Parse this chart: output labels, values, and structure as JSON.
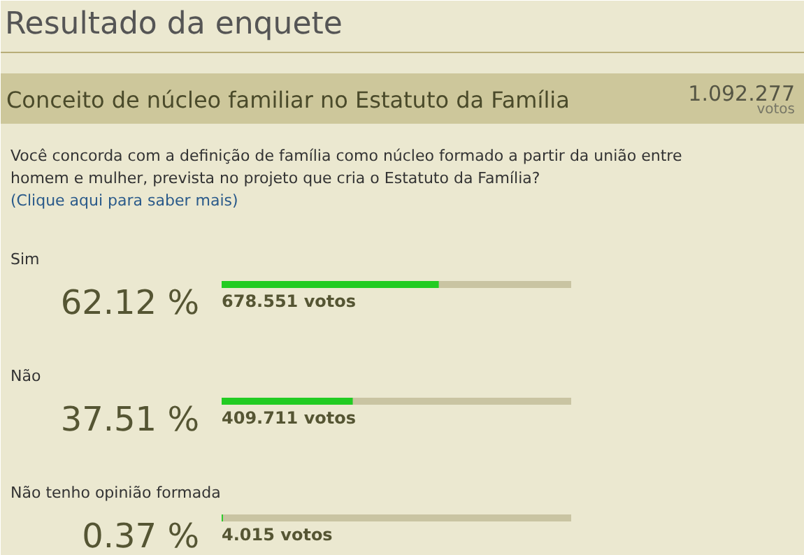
{
  "chart_data": {
    "type": "bar",
    "orientation": "horizontal",
    "title": "Resultado da enquete",
    "subtitle": "Conceito de núcleo familiar no Estatuto da Família",
    "categories": [
      "Sim",
      "Não",
      "Não tenho opinião formada"
    ],
    "values": [
      62.12,
      37.51,
      0.37
    ],
    "value_labels": [
      "62.12 %",
      "37.51 %",
      "0.37 %"
    ],
    "color": "#22cc22",
    "xlim": [
      0,
      100
    ],
    "annotations": [
      {
        "text": "1.092.277"
      },
      {
        "text": "votos"
      },
      {
        "text": "Você concorda com a definição de família como núcleo formado a partir da união entre homem e mulher, prevista no projeto que cria o Estatuto da Família?"
      },
      {
        "text": "(Clique aqui para saber mais)"
      },
      {
        "text": "678.551 votos"
      },
      {
        "text": "409.711 votos"
      },
      {
        "text": "4.015 votos"
      }
    ]
  }
}
